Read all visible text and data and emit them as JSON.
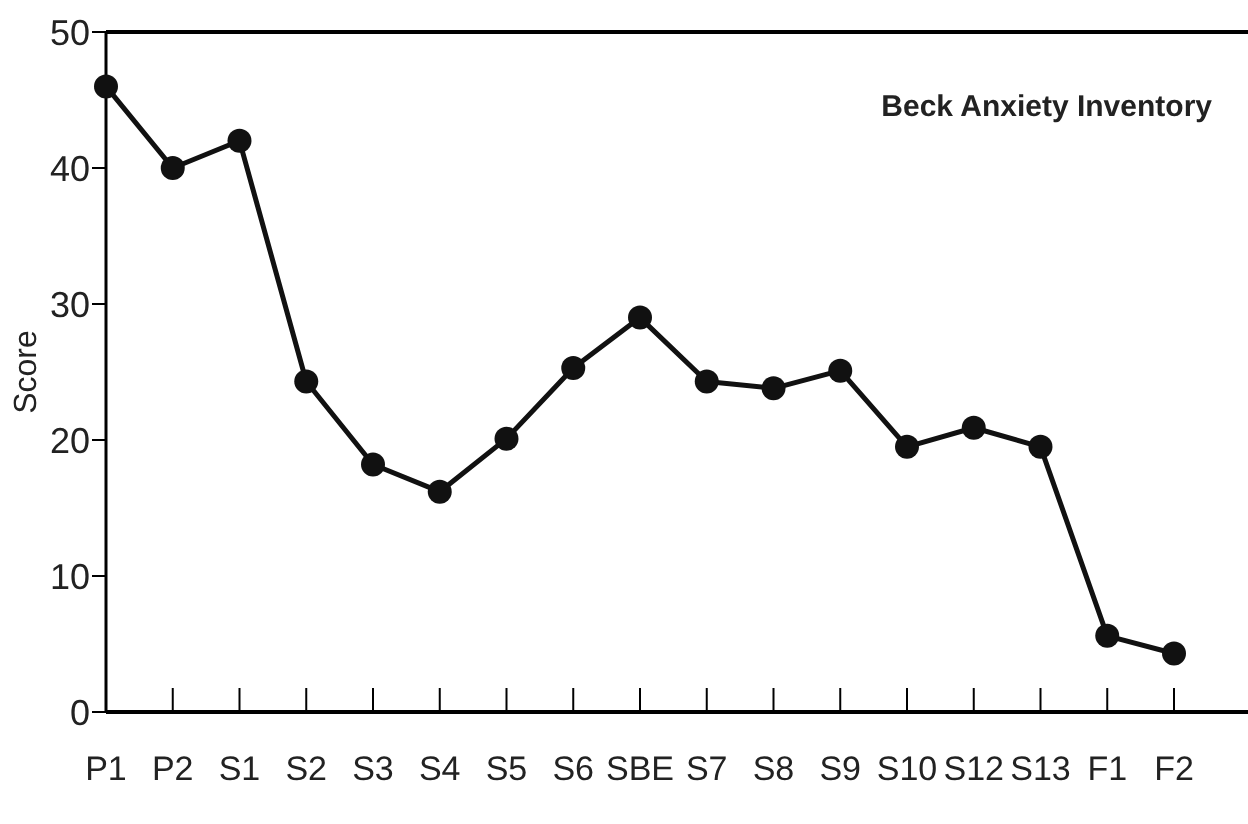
{
  "chart_data": {
    "type": "line",
    "title": "Beck Anxiety Inventory",
    "ylabel": "Score",
    "categories": [
      "P1",
      "P2",
      "S1",
      "S2",
      "S3",
      "S4",
      "S5",
      "S6",
      "SBE",
      "S7",
      "S8",
      "S9",
      "S10",
      "S12",
      "S13",
      "F1",
      "F2"
    ],
    "series": [
      {
        "color": "#111111",
        "values": [
          46,
          40,
          42,
          24.3,
          18.2,
          16.2,
          20.1,
          25.3,
          29,
          24.3,
          23.8,
          25.1,
          19.5,
          20.9,
          19.5,
          5.6,
          4.3
        ]
      }
    ],
    "ylim": [
      0,
      50
    ],
    "yticks": [
      0,
      10,
      20,
      30,
      40,
      50
    ],
    "marker": "circle",
    "line_style": "solid",
    "grid": false
  }
}
